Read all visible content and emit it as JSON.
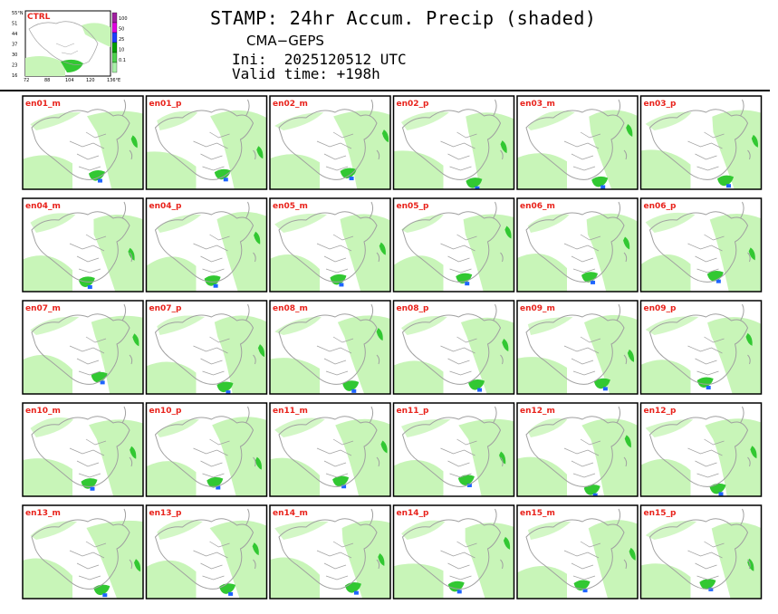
{
  "header": {
    "title": "STAMP: 24hr Accum. Precip (shaded)",
    "model": "CMA−GEPS",
    "ini_label": "Ini:",
    "ini_value": "2025120512 UTC",
    "valid_label": "Valid time:",
    "valid_value": "+198h"
  },
  "control": {
    "label": "CTRL",
    "lat_ticks": [
      "55°N",
      "51",
      "44",
      "37",
      "30",
      "23",
      "16"
    ],
    "lon_ticks": [
      "72",
      "88",
      "104",
      "120",
      "136°E"
    ],
    "colorbar_labels": [
      "100",
      "50",
      "25",
      "10",
      "0.1"
    ],
    "colorbar_colors": [
      "#a020a0",
      "#e000e0",
      "#1e3cff",
      "#00a000",
      "#4dd24d",
      "#a8f0a8"
    ]
  },
  "colors": {
    "land": "#ffffff",
    "light_precip": "#c8f5b8",
    "moderate_precip": "#32c832",
    "heavy_precip": "#1e64ff",
    "border": "#a0a0a0",
    "label": "#e8231c"
  },
  "members": [
    "en01_m",
    "en01_p",
    "en02_m",
    "en02_p",
    "en03_m",
    "en03_p",
    "en04_m",
    "en04_p",
    "en05_m",
    "en05_p",
    "en06_m",
    "en06_p",
    "en07_m",
    "en07_p",
    "en08_m",
    "en08_p",
    "en09_m",
    "en09_p",
    "en10_m",
    "en10_p",
    "en11_m",
    "en11_p",
    "en12_m",
    "en12_p",
    "en13_m",
    "en13_p",
    "en14_m",
    "en14_p",
    "en15_m",
    "en15_p"
  ]
}
